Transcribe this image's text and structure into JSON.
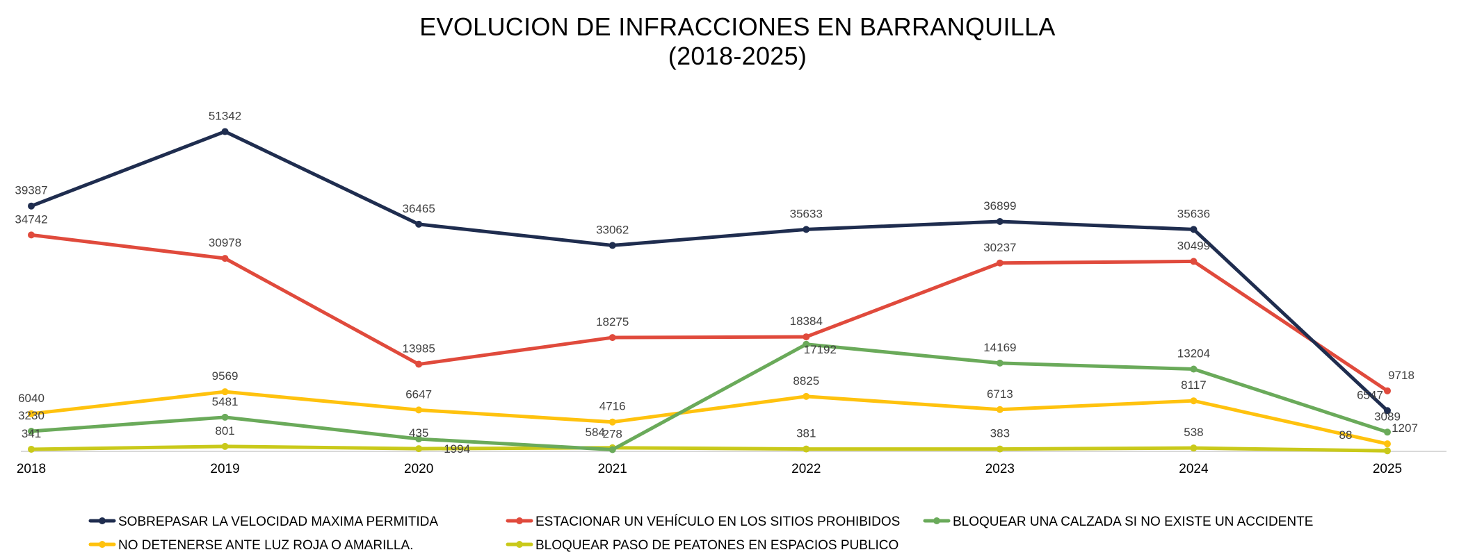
{
  "chart_data": {
    "type": "line",
    "title": "EVOLUCION DE INFRACCIONES EN BARRANQUILLA",
    "subtitle": "(2018-2025)",
    "xlabel": "",
    "ylabel": "",
    "categories": [
      "2018",
      "2019",
      "2020",
      "2021",
      "2022",
      "2023",
      "2024",
      "2025"
    ],
    "ylim": [
      0,
      55000
    ],
    "grid": false,
    "legend_position": "bottom",
    "series": [
      {
        "name": "SOBREPASAR LA VELOCIDAD MAXIMA PERMITIDA",
        "color": "#1f2d4f",
        "values": [
          39387,
          51342,
          36465,
          33062,
          35633,
          36899,
          35636,
          6547
        ]
      },
      {
        "name": "ESTACIONAR UN VEHÍCULO EN LOS SITIOS PROHIBIDOS",
        "color": "#e04a3c",
        "values": [
          34742,
          30978,
          13985,
          18275,
          18384,
          30237,
          30499,
          9718
        ]
      },
      {
        "name": "BLOQUEAR UNA CALZADA SI NO EXISTE UN ACCIDENTE",
        "color": "#6aaa5a",
        "values": [
          3230,
          5481,
          1994,
          278,
          17192,
          14169,
          13204,
          3089
        ]
      },
      {
        "name": "NO DETENERSE ANTE LUZ ROJA O AMARILLA.",
        "color": "#ffc20e",
        "values": [
          6040,
          9569,
          6647,
          4716,
          8825,
          6713,
          8117,
          1207
        ]
      },
      {
        "name": "BLOQUEAR PASO DE PEATONES EN ESPACIOS PUBLICO",
        "color": "#c9c91a",
        "values": [
          341,
          801,
          435,
          584,
          381,
          383,
          538,
          88
        ]
      }
    ]
  }
}
